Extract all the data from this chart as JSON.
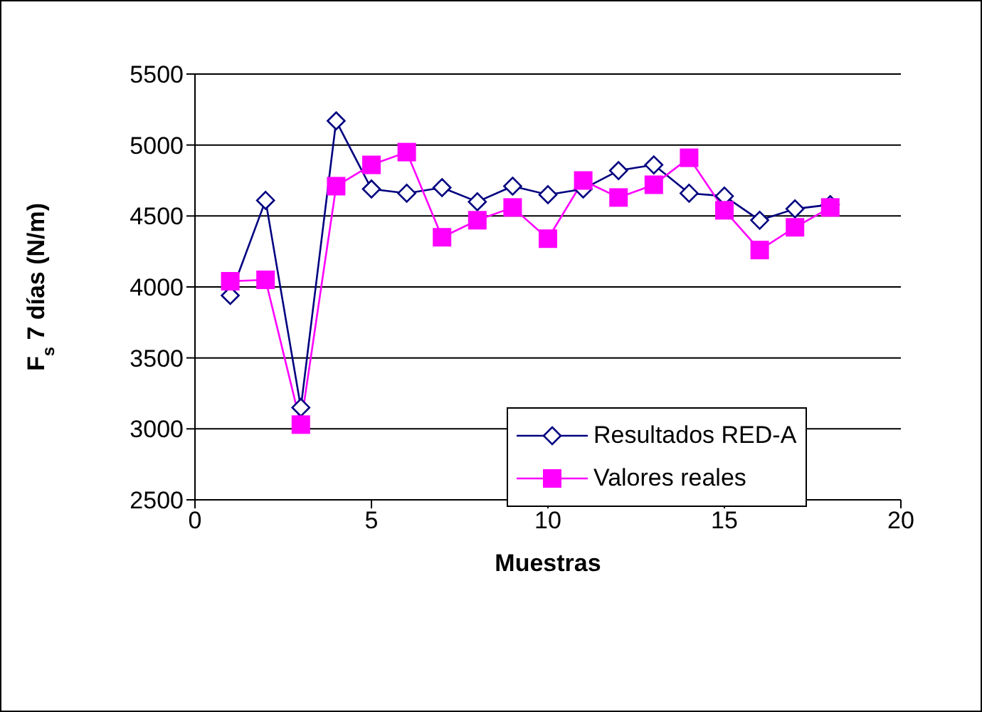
{
  "chart_data": {
    "type": "line",
    "xlabel": "Muestras",
    "ylabel": "F$_{s}$ 7 días (N/m)",
    "x": [
      1,
      2,
      3,
      4,
      5,
      6,
      7,
      8,
      9,
      10,
      11,
      12,
      13,
      14,
      15,
      16,
      17,
      18
    ],
    "series": [
      {
        "name": "Resultados RED-A",
        "color": "#000080",
        "marker": "diamond",
        "values": [
          3940,
          4610,
          3150,
          5170,
          4690,
          4660,
          4700,
          4600,
          4710,
          4650,
          4690,
          4820,
          4860,
          4660,
          4640,
          4470,
          4550,
          4580
        ]
      },
      {
        "name": "Valores reales",
        "color": "#ff00ff",
        "marker": "square",
        "values": [
          4040,
          4050,
          3030,
          4710,
          4860,
          4950,
          4350,
          4470,
          4560,
          4340,
          4750,
          4630,
          4720,
          4910,
          4540,
          4260,
          4420,
          4560
        ]
      }
    ],
    "xlim": [
      0,
      20
    ],
    "xticks": [
      0,
      5,
      10,
      15,
      20
    ],
    "ylim": [
      2500,
      5500
    ],
    "yticks": [
      2500,
      3000,
      3500,
      4000,
      4500,
      5000,
      5500
    ],
    "grid": "y",
    "legend": "bottom right",
    "line_style": "solid"
  }
}
